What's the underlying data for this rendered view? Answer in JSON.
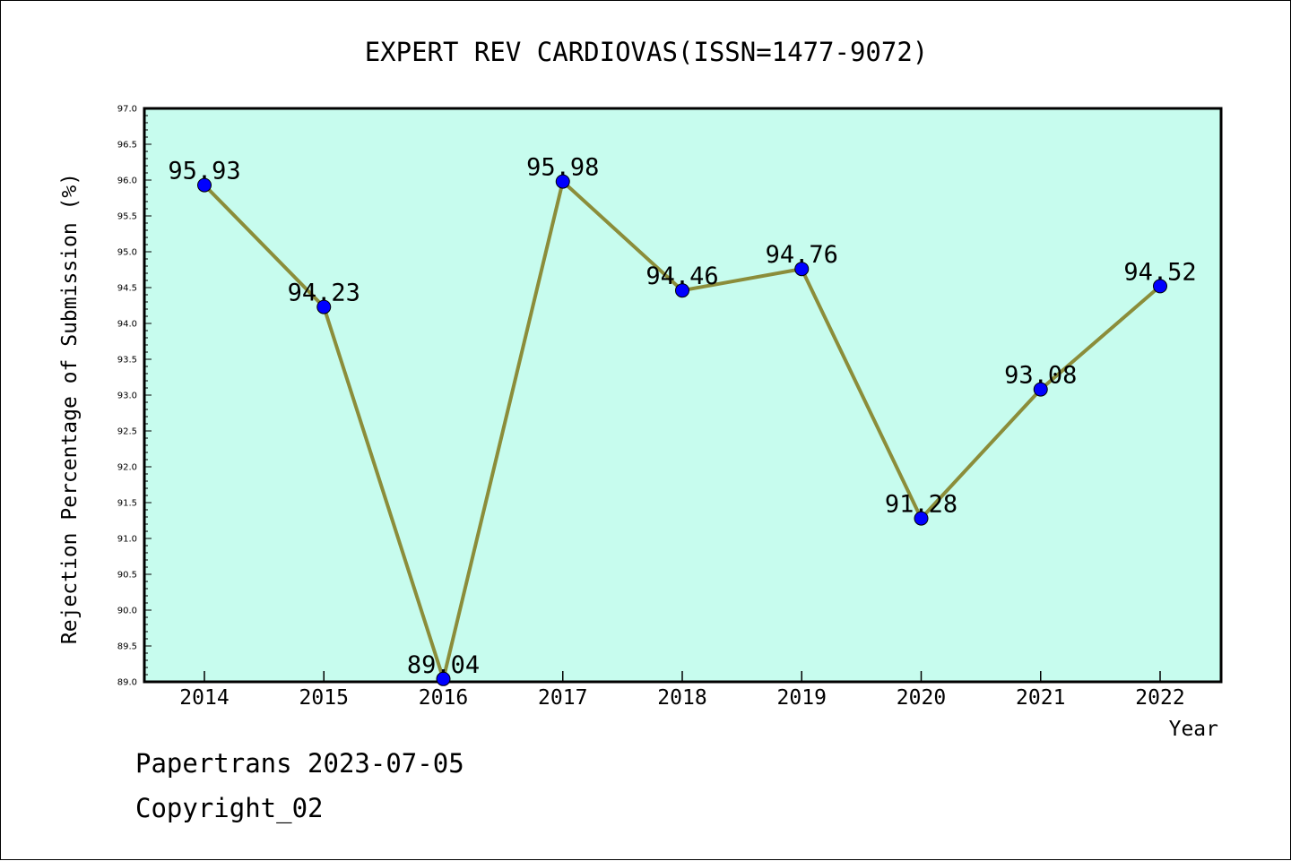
{
  "colors": {
    "plot_background": "#c7fcee",
    "line": "#8b8d3a",
    "marker": "#0000ff",
    "axis": "#000000"
  },
  "chart_data": {
    "type": "line",
    "title": "EXPERT REV CARDIOVAS(ISSN=1477-9072)",
    "xlabel": "Year",
    "ylabel": "Rejection Percentage of Submission (%)",
    "categories": [
      "2014",
      "2015",
      "2016",
      "2017",
      "2018",
      "2019",
      "2020",
      "2021",
      "2022"
    ],
    "series": [
      {
        "values": [
          95.93,
          94.23,
          89.04,
          95.98,
          94.46,
          94.76,
          91.28,
          93.08,
          94.52
        ],
        "data_labels": [
          "95.93",
          "94.23",
          "89.04",
          "95.98",
          "94.46",
          "94.76",
          "91.28",
          "93.08",
          "94.52"
        ]
      }
    ],
    "ylim": [
      89.0,
      97.0
    ],
    "yticks": [
      "89.0",
      "89.5",
      "90.0",
      "90.5",
      "91.0",
      "91.5",
      "92.0",
      "92.5",
      "93.0",
      "93.5",
      "94.0",
      "94.5",
      "95.0",
      "95.5",
      "96.0",
      "96.5",
      "97.0"
    ],
    "grid": false,
    "legend": "none"
  },
  "footer": {
    "line1": "Papertrans 2023-07-05",
    "line2": "Copyright_02"
  }
}
